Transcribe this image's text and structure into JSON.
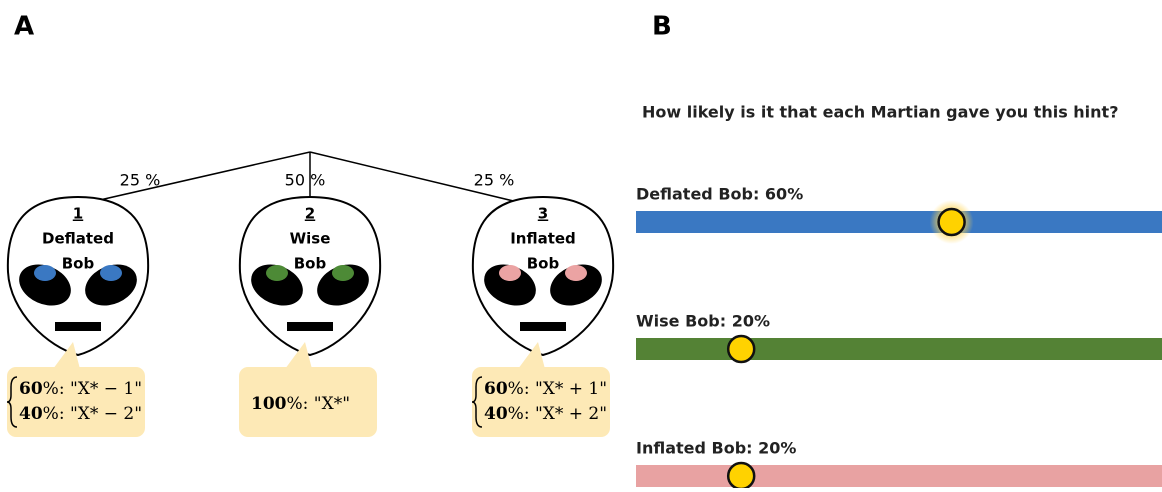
{
  "panel_a": {
    "label": "A",
    "branches": [
      "25 %",
      "50 %",
      "25 %"
    ],
    "aliens": [
      {
        "number": "1",
        "name": [
          "Deflated",
          "Bob"
        ],
        "eye_color": "#3a78c2",
        "hints": [
          {
            "pct": "60",
            "text": "%: \"X* − 1\""
          },
          {
            "pct": "40",
            "text": "%: \"X* − 2\""
          }
        ]
      },
      {
        "number": "2",
        "name": [
          "Wise",
          "Bob"
        ],
        "eye_color": "#4d8a36",
        "hints": [
          {
            "pct": "100",
            "text": "%: \"X*\""
          }
        ]
      },
      {
        "number": "3",
        "name": [
          "Inflated",
          "Bob"
        ],
        "eye_color": "#eba3a3",
        "hints": [
          {
            "pct": "60",
            "text": "%: \"X* + 1\""
          },
          {
            "pct": "40",
            "text": "%: \"X* + 2\""
          }
        ]
      }
    ]
  },
  "panel_b": {
    "label": "B",
    "question": "How likely is it that each Martian gave you this hint?",
    "sliders": [
      {
        "label": "Deflated Bob: 60%",
        "value": 60,
        "color": "#3a78c2",
        "active": true
      },
      {
        "label": "Wise Bob: 20%",
        "value": 20,
        "color": "#548235",
        "active": false
      },
      {
        "label": "Inflated Bob: 20%",
        "value": 20,
        "color": "#e8a2a2",
        "active": false
      }
    ]
  }
}
